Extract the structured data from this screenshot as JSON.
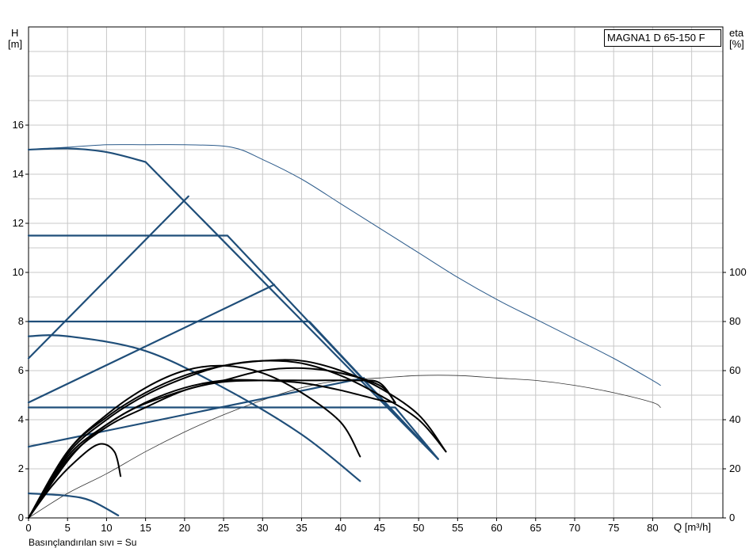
{
  "chart_data": {
    "type": "line",
    "title": "MAGNA1 D 65-150 F",
    "xlabel": "Q [m³/h]",
    "ylabel_left_line1": "H",
    "ylabel_left_line2": "[m]",
    "ylabel_right_line1": "eta",
    "ylabel_right_line2": "[%]",
    "footer": "Basınçlandırılan sıvı = Su",
    "xlim": [
      0,
      89
    ],
    "ylim_left": [
      0,
      20
    ],
    "ylim_right": [
      0,
      200
    ],
    "x_ticks": [
      0,
      5,
      10,
      15,
      20,
      25,
      30,
      35,
      40,
      45,
      50,
      55,
      60,
      65,
      70,
      75,
      80
    ],
    "y_ticks_left": [
      0,
      2,
      4,
      6,
      8,
      10,
      12,
      14,
      16
    ],
    "y_ticks_right": [
      0,
      20,
      40,
      60,
      80,
      100
    ],
    "grid": true,
    "colors": {
      "head": "#1f4e79",
      "power": "#2b5a8a",
      "efficiency": "#000000",
      "overall": "#333333",
      "grid": "#c8c8c8"
    },
    "head_curves": [
      {
        "points": [
          [
            0,
            15.0
          ],
          [
            5,
            15.05
          ],
          [
            10,
            14.9
          ],
          [
            15,
            14.5
          ],
          [
            52.5,
            2.4
          ]
        ]
      },
      {
        "points": [
          [
            0,
            11.5
          ],
          [
            25.5,
            11.5
          ],
          [
            52.5,
            2.4
          ]
        ]
      },
      {
        "points": [
          [
            0,
            8.0
          ],
          [
            36,
            8.0
          ],
          [
            52.5,
            2.4
          ]
        ]
      },
      {
        "points": [
          [
            0,
            4.5
          ],
          [
            47,
            4.5
          ],
          [
            52.5,
            2.4
          ]
        ]
      },
      {
        "points": [
          [
            0,
            7.4
          ],
          [
            5,
            7.4
          ],
          [
            15,
            6.8
          ],
          [
            25,
            5.3
          ],
          [
            35,
            3.4
          ],
          [
            42.5,
            1.5
          ]
        ]
      },
      {
        "points": [
          [
            0,
            1.0
          ],
          [
            5,
            0.9
          ],
          [
            8,
            0.7
          ],
          [
            11.5,
            0.1
          ]
        ]
      }
    ],
    "control_lines": [
      {
        "points": [
          [
            0,
            6.5
          ],
          [
            20.5,
            13.1
          ]
        ]
      },
      {
        "points": [
          [
            0,
            4.7
          ],
          [
            31.5,
            9.5
          ]
        ]
      },
      {
        "points": [
          [
            0,
            2.9
          ],
          [
            43,
            5.7
          ]
        ]
      }
    ],
    "efficiency_curves": [
      {
        "points": [
          [
            0,
            0
          ],
          [
            3,
            13
          ],
          [
            6,
            23
          ],
          [
            9,
            30
          ],
          [
            11,
            27
          ],
          [
            11.8,
            17
          ]
        ]
      },
      {
        "points": [
          [
            0,
            0
          ],
          [
            5,
            27
          ],
          [
            10,
            42
          ],
          [
            15,
            53
          ],
          [
            20,
            60
          ],
          [
            25,
            62
          ],
          [
            30,
            59
          ],
          [
            35,
            51
          ],
          [
            40,
            39
          ],
          [
            42.5,
            25
          ]
        ]
      },
      {
        "points": [
          [
            0,
            0
          ],
          [
            5,
            26
          ],
          [
            10,
            40
          ],
          [
            15,
            50
          ],
          [
            20,
            57
          ],
          [
            25,
            62
          ],
          [
            30,
            64
          ],
          [
            35,
            63
          ],
          [
            40,
            58
          ],
          [
            45,
            50
          ],
          [
            50,
            40
          ],
          [
            53.5,
            27
          ]
        ]
      },
      {
        "points": [
          [
            0,
            0
          ],
          [
            5,
            25
          ],
          [
            10,
            38
          ],
          [
            15,
            47
          ],
          [
            20,
            53
          ],
          [
            25,
            56
          ],
          [
            30,
            56
          ],
          [
            35,
            55
          ],
          [
            40,
            52
          ],
          [
            45,
            48
          ],
          [
            47,
            47
          ]
        ]
      },
      {
        "points": [
          [
            0,
            0
          ],
          [
            5,
            24
          ],
          [
            10,
            37
          ],
          [
            15,
            45
          ],
          [
            20,
            52
          ],
          [
            25,
            56
          ],
          [
            30,
            60
          ],
          [
            35,
            61
          ],
          [
            40,
            59
          ],
          [
            45,
            54
          ],
          [
            47,
            47
          ]
        ]
      },
      {
        "points": [
          [
            0,
            0
          ],
          [
            5,
            27
          ],
          [
            10,
            41
          ],
          [
            15,
            51
          ],
          [
            20,
            58
          ],
          [
            25,
            62
          ],
          [
            30,
            64
          ],
          [
            35,
            64
          ],
          [
            40,
            60
          ],
          [
            45,
            53
          ],
          [
            50,
            42
          ],
          [
            53.5,
            27
          ]
        ]
      },
      {
        "points": [
          [
            0,
            0
          ],
          [
            6,
            27
          ],
          [
            12,
            42
          ],
          [
            18,
            50
          ],
          [
            24,
            55
          ],
          [
            30,
            56
          ],
          [
            36,
            56
          ],
          [
            42,
            56
          ],
          [
            45,
            55
          ],
          [
            47,
            47
          ]
        ]
      }
    ],
    "power_curve": {
      "points": [
        [
          0,
          15.0
        ],
        [
          5,
          15.1
        ],
        [
          10,
          15.2
        ],
        [
          15,
          15.2
        ],
        [
          20,
          15.2
        ],
        [
          26,
          15.1
        ],
        [
          30,
          14.6
        ],
        [
          35,
          13.8
        ],
        [
          40,
          12.8
        ],
        [
          45,
          11.8
        ],
        [
          50,
          10.8
        ],
        [
          55,
          9.8
        ],
        [
          60,
          8.9
        ],
        [
          65,
          8.1
        ],
        [
          70,
          7.3
        ],
        [
          75,
          6.5
        ],
        [
          80,
          5.6
        ],
        [
          81,
          5.4
        ]
      ]
    },
    "overall_efficiency": {
      "points": [
        [
          0,
          0
        ],
        [
          5,
          10
        ],
        [
          10,
          18
        ],
        [
          15,
          27
        ],
        [
          20,
          35
        ],
        [
          25,
          42
        ],
        [
          30,
          48
        ],
        [
          35,
          53
        ],
        [
          40,
          56
        ],
        [
          45,
          57
        ],
        [
          50,
          58
        ],
        [
          55,
          58
        ],
        [
          60,
          57
        ],
        [
          65,
          56
        ],
        [
          70,
          54
        ],
        [
          75,
          51
        ],
        [
          80,
          47
        ],
        [
          81,
          45
        ]
      ]
    }
  }
}
